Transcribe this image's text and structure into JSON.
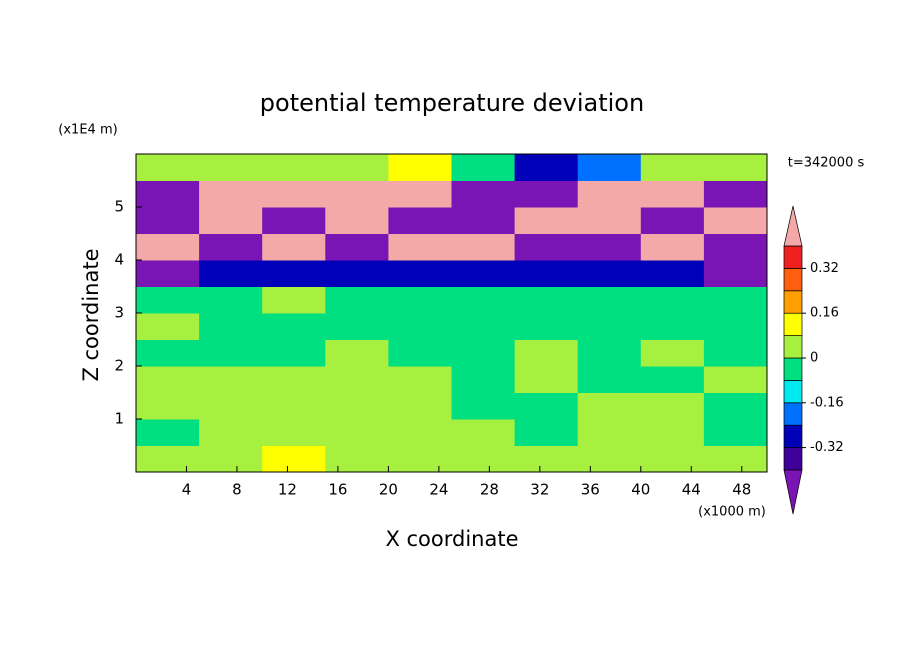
{
  "chart_data": {
    "type": "contour",
    "title": "potential temperature deviation",
    "xlabel": "X coordinate",
    "ylabel": "Z coordinate",
    "x_unit": "(x1000 m)",
    "y_unit": "(x1E4 m)",
    "annotation": "t=342000 s",
    "xlim": [
      0,
      50
    ],
    "ylim": [
      0,
      6
    ],
    "xticks": [
      4,
      8,
      12,
      16,
      20,
      24,
      28,
      32,
      36,
      40,
      44,
      48
    ],
    "yticks": [
      1,
      2,
      3,
      4,
      5
    ],
    "x": [
      2.5,
      7.5,
      12.5,
      17.5,
      22.5,
      27.5,
      32.5,
      37.5,
      42.5,
      47.5
    ],
    "y": [
      0.25,
      0.75,
      1.25,
      1.75,
      2.25,
      2.75,
      3.25,
      3.75,
      4.25,
      4.75,
      5.25,
      5.75
    ],
    "z": [
      [
        0.04,
        0.04,
        0.12,
        0.04,
        0.04,
        0.04,
        0.04,
        0.04,
        0.04,
        0.04
      ],
      [
        -0.04,
        0.04,
        0.04,
        0.04,
        0.04,
        0.04,
        -0.04,
        0.04,
        0.04,
        -0.04
      ],
      [
        0.04,
        0.04,
        0.04,
        0.04,
        0.04,
        -0.04,
        -0.04,
        0.04,
        0.04,
        -0.04
      ],
      [
        0.04,
        0.04,
        0.04,
        0.04,
        0.04,
        -0.04,
        0.04,
        -0.04,
        -0.04,
        0.04
      ],
      [
        -0.04,
        -0.04,
        -0.04,
        0.04,
        -0.04,
        -0.04,
        0.04,
        -0.04,
        0.04,
        -0.04
      ],
      [
        0.04,
        -0.04,
        -0.04,
        -0.04,
        -0.04,
        -0.04,
        -0.04,
        -0.04,
        -0.04,
        -0.04
      ],
      [
        -0.04,
        -0.04,
        0.04,
        -0.04,
        -0.04,
        -0.04,
        -0.04,
        -0.04,
        -0.04,
        -0.04
      ],
      [
        -0.44,
        -0.28,
        -0.28,
        -0.28,
        -0.28,
        -0.28,
        -0.28,
        -0.28,
        -0.28,
        -0.44
      ],
      [
        0.44,
        -0.44,
        0.44,
        -0.44,
        0.44,
        0.44,
        -0.44,
        -0.44,
        0.44,
        -0.44
      ],
      [
        -0.44,
        0.44,
        -0.44,
        0.44,
        -0.44,
        -0.44,
        0.44,
        0.44,
        -0.44,
        0.44
      ],
      [
        -0.44,
        0.44,
        0.44,
        0.44,
        0.44,
        -0.44,
        -0.44,
        0.44,
        0.44,
        -0.44
      ],
      [
        0.04,
        0.04,
        0.04,
        0.04,
        0.12,
        -0.04,
        -0.28,
        -0.2,
        0.04,
        0.04
      ]
    ],
    "levels": [
      -0.4,
      -0.32,
      -0.24,
      -0.16,
      -0.08,
      0,
      0.08,
      0.16,
      0.24,
      0.32,
      0.4
    ],
    "colors": [
      "#7a14b4",
      "#40009a",
      "#0000b8",
      "#0070ff",
      "#00e8f0",
      "#00e080",
      "#a8f040",
      "#ffff00",
      "#ffa000",
      "#ff6010",
      "#f02020",
      "#f4a8a8"
    ],
    "colorbar_ticks": [
      -0.32,
      -0.16,
      0,
      0.16,
      0.32
    ]
  }
}
